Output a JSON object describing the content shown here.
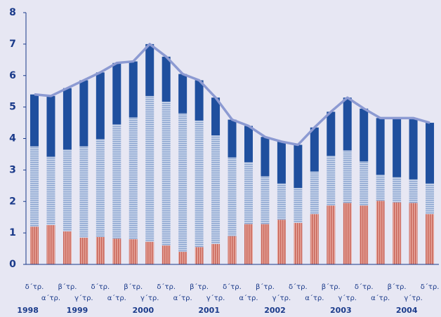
{
  "chart_data": {
    "type": "bar",
    "stacked": true,
    "categories": [
      "δ΄τρ.",
      "α΄τρ.",
      "β΄τρ.",
      "γ΄τρ.",
      "δ΄τρ.",
      "α΄τρ.",
      "β΄τρ.",
      "γ΄τρ.",
      "δ΄τρ.",
      "α΄τρ.",
      "β΄τρ.",
      "γ΄τρ.",
      "δ΄τρ.",
      "α΄τρ.",
      "β΄τρ.",
      "γ΄τρ.",
      "δ΄τρ.",
      "α΄τρ.",
      "β΄τρ.",
      "γ΄τρ.",
      "δ΄τρ.",
      "α΄τρ.",
      "β΄τρ.",
      "γ΄τρ.",
      "δ΄τρ."
    ],
    "years": [
      "1998",
      null,
      null,
      "1999",
      null,
      null,
      null,
      "2000",
      null,
      null,
      null,
      "2001",
      null,
      null,
      null,
      "2002",
      null,
      null,
      null,
      "2003",
      null,
      null,
      null,
      "2004",
      null
    ],
    "series": [
      {
        "color": "#d9857a",
        "values": [
          1.2,
          1.25,
          1.05,
          0.85,
          0.87,
          0.82,
          0.8,
          0.72,
          0.6,
          0.4,
          0.55,
          0.65,
          0.9,
          1.28,
          1.28,
          1.42,
          1.32,
          1.6,
          1.87,
          1.95,
          1.87,
          2.02,
          1.97,
          1.95,
          1.6
        ]
      },
      {
        "color": "#a9bbdc",
        "values": [
          2.55,
          2.17,
          2.6,
          2.9,
          3.11,
          3.63,
          3.87,
          4.63,
          4.57,
          4.4,
          4.02,
          3.45,
          2.5,
          1.97,
          1.52,
          1.15,
          1.11,
          1.35,
          1.58,
          1.67,
          1.4,
          0.83,
          0.8,
          0.75,
          0.97
        ]
      },
      {
        "color": "#1f4f9e",
        "values": [
          1.65,
          1.93,
          1.95,
          2.1,
          2.12,
          1.95,
          1.78,
          1.65,
          1.43,
          1.25,
          1.28,
          1.2,
          1.2,
          1.15,
          1.25,
          1.33,
          1.37,
          1.4,
          1.4,
          1.68,
          1.68,
          1.8,
          1.88,
          1.95,
          1.93
        ]
      },
      {
        "type": "line",
        "color": "#8c9ad2",
        "values": [
          5.4,
          5.35,
          5.6,
          5.85,
          6.1,
          6.4,
          6.45,
          7.0,
          6.6,
          6.05,
          5.85,
          5.3,
          4.6,
          4.4,
          4.05,
          3.9,
          3.8,
          4.35,
          4.85,
          5.3,
          4.95,
          4.65,
          4.65,
          4.65,
          4.5
        ]
      }
    ],
    "ylim": [
      0,
      8
    ],
    "yticks": [
      0,
      1,
      2,
      3,
      4,
      5,
      6,
      7,
      8
    ]
  }
}
